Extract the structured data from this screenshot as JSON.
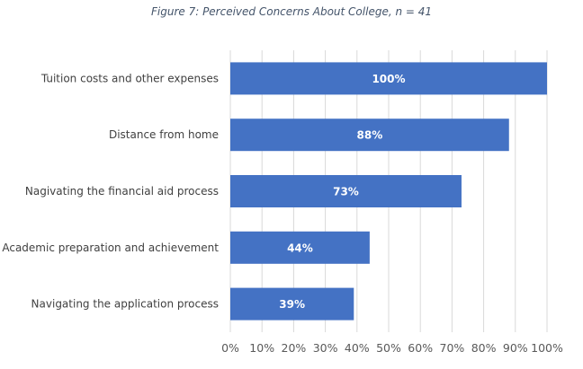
{
  "chart_data": {
    "type": "bar",
    "orientation": "horizontal",
    "title": "Figure 7: Perceived Concerns About College, n = 41",
    "categories": [
      "Tuition costs and other expenses",
      "Distance from home",
      "Nagivating the financial aid process",
      "Academic preparation and achievement",
      "Navigating the application process"
    ],
    "values": [
      100,
      88,
      73,
      44,
      39
    ],
    "data_labels": [
      "100%",
      "88%",
      "73%",
      "44%",
      "39%"
    ],
    "xlim": [
      0,
      100
    ],
    "x_ticks": [
      "0%",
      "10%",
      "20%",
      "30%",
      "40%",
      "50%",
      "60%",
      "70%",
      "80%",
      "90%",
      "100%"
    ],
    "xlabel": "",
    "ylabel": "",
    "grid": "vertical",
    "bar_color": "#4472C4",
    "legend": "none"
  }
}
